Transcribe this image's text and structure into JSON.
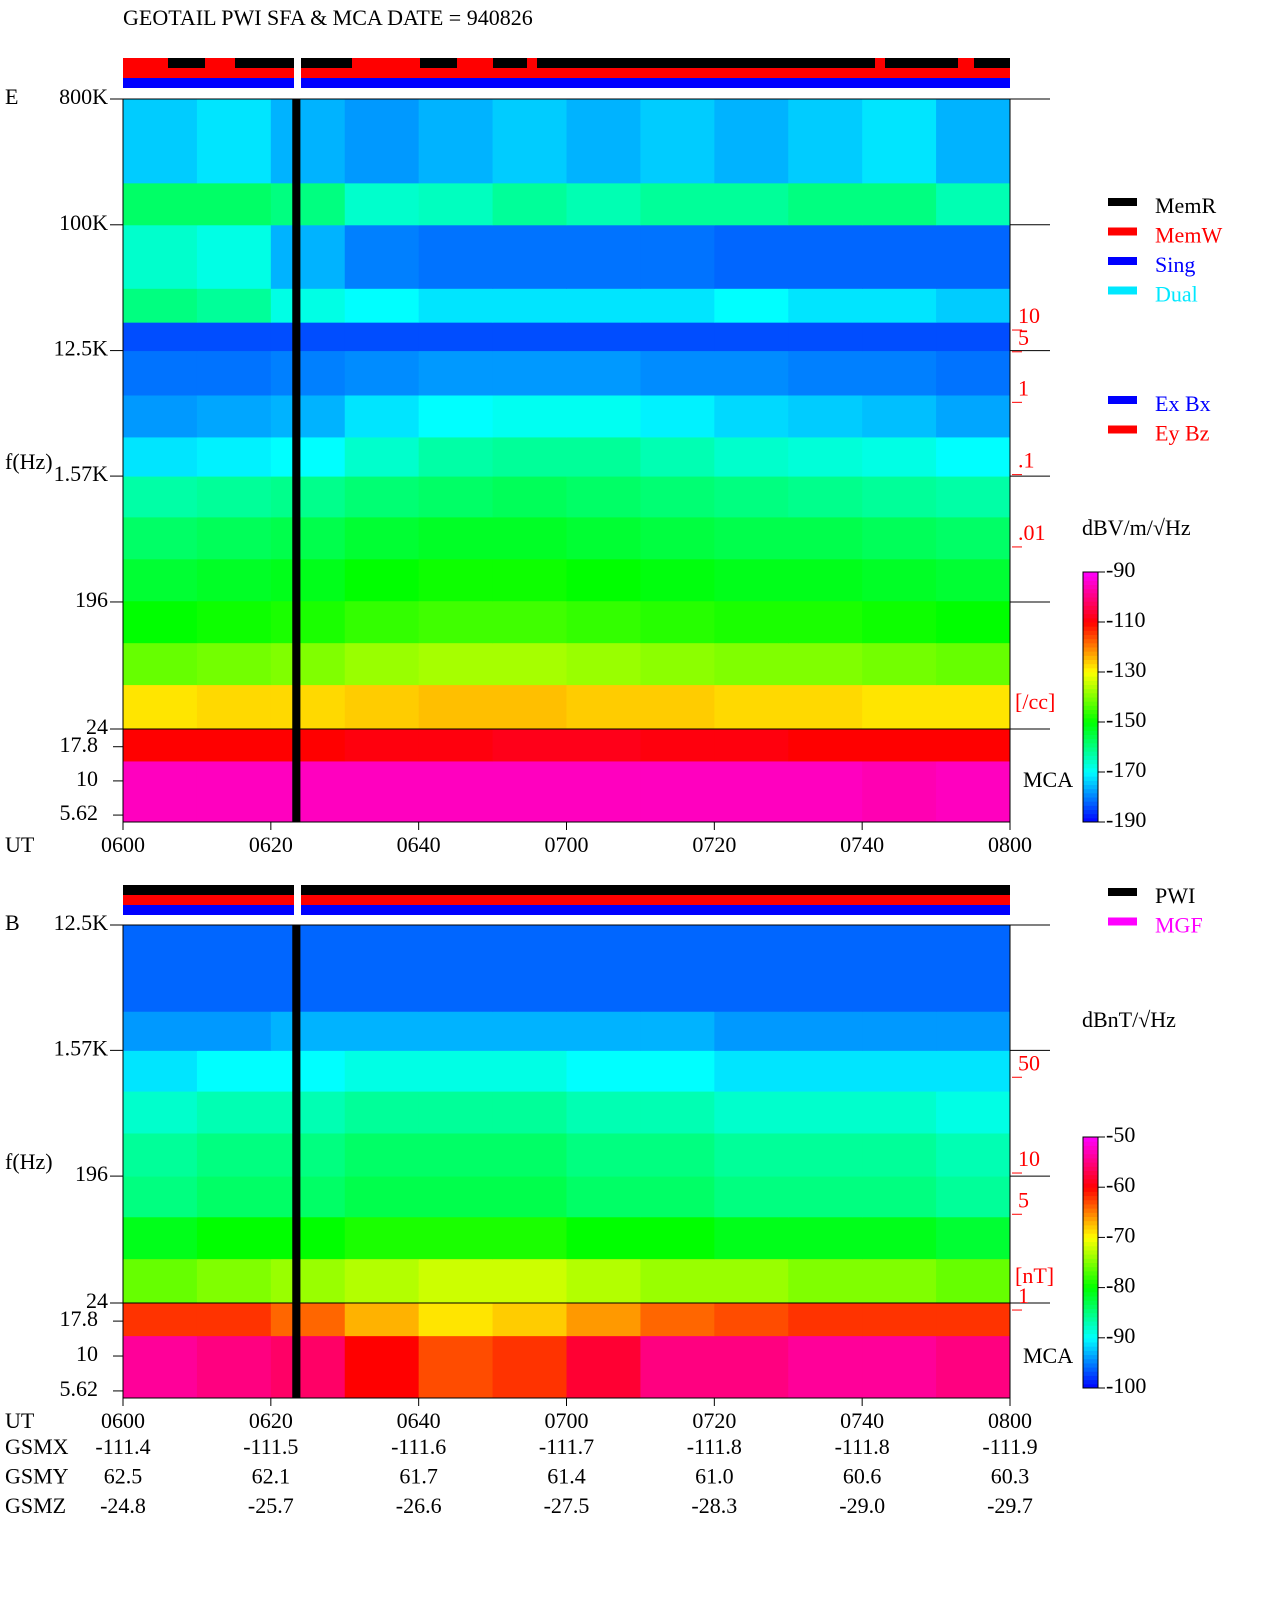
{
  "chart_data": [
    {
      "type": "spectrogram",
      "title": "GEOTAIL  PWI SFA & MCA   DATE = 940826",
      "label": "E",
      "ylabel": "f(Hz)",
      "xlabel": "UT",
      "xlim": [
        0,
        120
      ],
      "xticks": [
        {
          "value": 0,
          "label": "0600"
        },
        {
          "value": 20,
          "label": "0620"
        },
        {
          "value": 40,
          "label": "0640"
        },
        {
          "value": 60,
          "label": "0700"
        },
        {
          "value": 80,
          "label": "0720"
        },
        {
          "value": 100,
          "label": "0740"
        },
        {
          "value": 120,
          "label": "0800"
        }
      ],
      "ylog": true,
      "ylim": [
        24,
        800000
      ],
      "yticks": [
        {
          "value": 800000,
          "label": "800K"
        },
        {
          "value": 100000,
          "label": "100K"
        },
        {
          "value": 12500,
          "label": "12.5K"
        },
        {
          "value": 1570,
          "label": "1.57K"
        },
        196,
        24
      ],
      "mca_label": "MCA",
      "mca_ylim": [
        5,
        24
      ],
      "mca_yticks": [
        17.8,
        10,
        5.62
      ],
      "time_bins": [
        0,
        10,
        20,
        30,
        40,
        50,
        60,
        70,
        80,
        90,
        100,
        110,
        120
      ],
      "freq_bins": [
        24,
        50,
        100,
        200,
        400,
        800,
        1570,
        3000,
        6000,
        12500,
        20000,
        35000,
        100000,
        200000,
        800000
      ],
      "z": [
        [
          -128,
          -127,
          -127,
          -126,
          -125,
          -125,
          -126,
          -126,
          -127,
          -127,
          -128,
          -128
        ],
        [
          -142,
          -141,
          -140,
          -138,
          -137,
          -137,
          -138,
          -139,
          -140,
          -140,
          -141,
          -142
        ],
        [
          -150,
          -149,
          -148,
          -146,
          -145,
          -145,
          -146,
          -147,
          -148,
          -148,
          -149,
          -150
        ],
        [
          -154,
          -153,
          -152,
          -150,
          -149,
          -149,
          -150,
          -151,
          -152,
          -152,
          -153,
          -154
        ],
        [
          -158,
          -157,
          -156,
          -154,
          -153,
          -153,
          -154,
          -155,
          -156,
          -156,
          -157,
          -158
        ],
        [
          -163,
          -162,
          -161,
          -159,
          -158,
          -157,
          -158,
          -159,
          -160,
          -161,
          -162,
          -163
        ],
        [
          -172,
          -171,
          -170,
          -166,
          -163,
          -162,
          -162,
          -164,
          -166,
          -167,
          -168,
          -170
        ],
        [
          -178,
          -177,
          -176,
          -172,
          -170,
          -169,
          -169,
          -171,
          -173,
          -174,
          -175,
          -177
        ],
        [
          -181,
          -181,
          -180,
          -179,
          -178,
          -178,
          -178,
          -179,
          -179,
          -180,
          -180,
          -181
        ],
        [
          -184,
          -184,
          -184,
          -184,
          -184,
          -184,
          -184,
          -184,
          -184,
          -184,
          -184,
          -184
        ],
        [
          -160,
          -162,
          -168,
          -170,
          -172,
          -172,
          -172,
          -172,
          -170,
          -172,
          -172,
          -174
        ],
        [
          -166,
          -168,
          -176,
          -180,
          -181,
          -181,
          -181,
          -181,
          -182,
          -182,
          -182,
          -182
        ],
        [
          -158,
          -158,
          -160,
          -166,
          -165,
          -162,
          -164,
          -162,
          -162,
          -160,
          -160,
          -164
        ],
        [
          -174,
          -172,
          -176,
          -178,
          -176,
          -174,
          -176,
          -174,
          -176,
          -174,
          -172,
          -176
        ]
      ],
      "mca_bins": [
        5,
        14,
        24
      ],
      "mca_z": [
        [
          -95,
          -95,
          -95,
          -95,
          -95,
          -95,
          -95,
          -95,
          -95,
          -95,
          -96,
          -95
        ],
        [
          -110,
          -110,
          -110,
          -109,
          -109,
          -108,
          -108,
          -109,
          -109,
          -110,
          -110,
          -110
        ]
      ],
      "gap": [
        22.9,
        24
      ],
      "clim": [
        -190,
        -90
      ],
      "cticks": [
        -90,
        -110,
        -130,
        -150,
        -170,
        -190
      ],
      "colorbar_label": "dBV/m/√Hz",
      "colormap": [
        "#0000ff",
        "#00ffff",
        "#00ff00",
        "#ffff00",
        "#ff0000",
        "#ff00ff"
      ],
      "y2log": true,
      "y2lim": [
        2.07e-05,
        10700
      ],
      "y2ticks": [
        10,
        5,
        1,
        {
          "value": 0.1,
          "label": ".1"
        },
        {
          "value": 0.01,
          "label": ".01"
        }
      ],
      "y2label": "[/cc]",
      "legend": [
        [
          {
            "name": "MemR",
            "color": "#000000"
          },
          {
            "name": "MemW",
            "color": "#ff0000"
          },
          {
            "name": "Sing",
            "color": "#0000ff"
          },
          {
            "name": "Dual",
            "color": "#00e8ff"
          }
        ],
        [
          {
            "name": "Ex Bx",
            "color": "#0000ff"
          },
          {
            "name": "Ey Bz",
            "color": "#ff0000"
          }
        ]
      ]
    },
    {
      "type": "spectrogram",
      "label": "B",
      "ylabel": "f(Hz)",
      "xlabel": "UT",
      "xlim": [
        0,
        120
      ],
      "xticks": [
        {
          "value": 0,
          "label": "0600"
        },
        {
          "value": 20,
          "label": "0620"
        },
        {
          "value": 40,
          "label": "0640"
        },
        {
          "value": 60,
          "label": "0700"
        },
        {
          "value": 80,
          "label": "0720"
        },
        {
          "value": 100,
          "label": "0740"
        },
        {
          "value": 120,
          "label": "0800"
        }
      ],
      "ylog": true,
      "ylim": [
        24,
        12500
      ],
      "yticks": [
        {
          "value": 12500,
          "label": "12.5K"
        },
        {
          "value": 1570,
          "label": "1.57K"
        },
        196,
        24
      ],
      "mca_label": "MCA",
      "mca_ylim": [
        5,
        24
      ],
      "mca_yticks": [
        17.8,
        10,
        5.62
      ],
      "time_bins": [
        0,
        10,
        20,
        30,
        40,
        50,
        60,
        70,
        80,
        90,
        100,
        110,
        120
      ],
      "freq_bins": [
        24,
        50,
        100,
        196,
        400,
        800,
        1570,
        3000,
        12500
      ],
      "z": [
        [
          -76,
          -75,
          -74,
          -73,
          -72,
          -72,
          -73,
          -74,
          -74,
          -75,
          -75,
          -76
        ],
        [
          -81,
          -80,
          -80,
          -79,
          -79,
          -79,
          -80,
          -80,
          -81,
          -81,
          -81,
          -82
        ],
        [
          -85,
          -84,
          -84,
          -83,
          -83,
          -83,
          -84,
          -84,
          -85,
          -85,
          -85,
          -86
        ],
        [
          -86,
          -85,
          -85,
          -84,
          -84,
          -84,
          -85,
          -85,
          -86,
          -86,
          -86,
          -87
        ],
        [
          -88,
          -87,
          -87,
          -86,
          -86,
          -86,
          -87,
          -87,
          -88,
          -88,
          -88,
          -89
        ],
        [
          -91,
          -90,
          -90,
          -89,
          -89,
          -89,
          -90,
          -90,
          -91,
          -91,
          -91,
          -91
        ],
        [
          -94,
          -94,
          -93,
          -93,
          -93,
          -93,
          -93,
          -93,
          -94,
          -94,
          -94,
          -94
        ],
        [
          -96,
          -96,
          -96,
          -96,
          -96,
          -96,
          -96,
          -96,
          -96,
          -96,
          -96,
          -96
        ]
      ],
      "mca_bins": [
        5,
        14,
        24
      ],
      "mca_z": [
        [
          -54,
          -55,
          -56,
          -60,
          -63,
          -62,
          -58,
          -55,
          -55,
          -54,
          -54,
          -55
        ],
        [
          -62,
          -62,
          -64,
          -67,
          -69,
          -68,
          -66,
          -64,
          -63,
          -62,
          -62,
          -62
        ]
      ],
      "gap": [
        22.9,
        24
      ],
      "clim": [
        -100,
        -50
      ],
      "cticks": [
        -50,
        -60,
        -70,
        -80,
        -90,
        -100
      ],
      "colorbar_label": "dBnT/√Hz",
      "colormap": [
        "#0000ff",
        "#00ffff",
        "#00ff00",
        "#ffff00",
        "#ff0000",
        "#ff00ff"
      ],
      "y2log": true,
      "y2lim": [
        0.92,
        528
      ],
      "y2ticks": [
        50,
        10,
        5,
        1
      ],
      "y2label": "[nT]",
      "legend": [
        [
          {
            "name": "PWI",
            "color": "#000000"
          },
          {
            "name": "MGF",
            "color": "#ff00ff"
          }
        ]
      ]
    }
  ],
  "orbit": {
    "rows": [
      {
        "name": "GSMX",
        "values": [
          "-111.4",
          "-111.5",
          "-111.6",
          "-111.7",
          "-111.8",
          "-111.8",
          "-111.9"
        ]
      },
      {
        "name": "GSMY",
        "values": [
          "62.5",
          "62.1",
          "61.7",
          "61.4",
          "61.0",
          "60.6",
          "60.3"
        ]
      },
      {
        "name": "GSMZ",
        "values": [
          "-24.8",
          "-25.7",
          "-26.6",
          "-27.5",
          "-28.3",
          "-29.0",
          "-29.7"
        ]
      }
    ]
  }
}
